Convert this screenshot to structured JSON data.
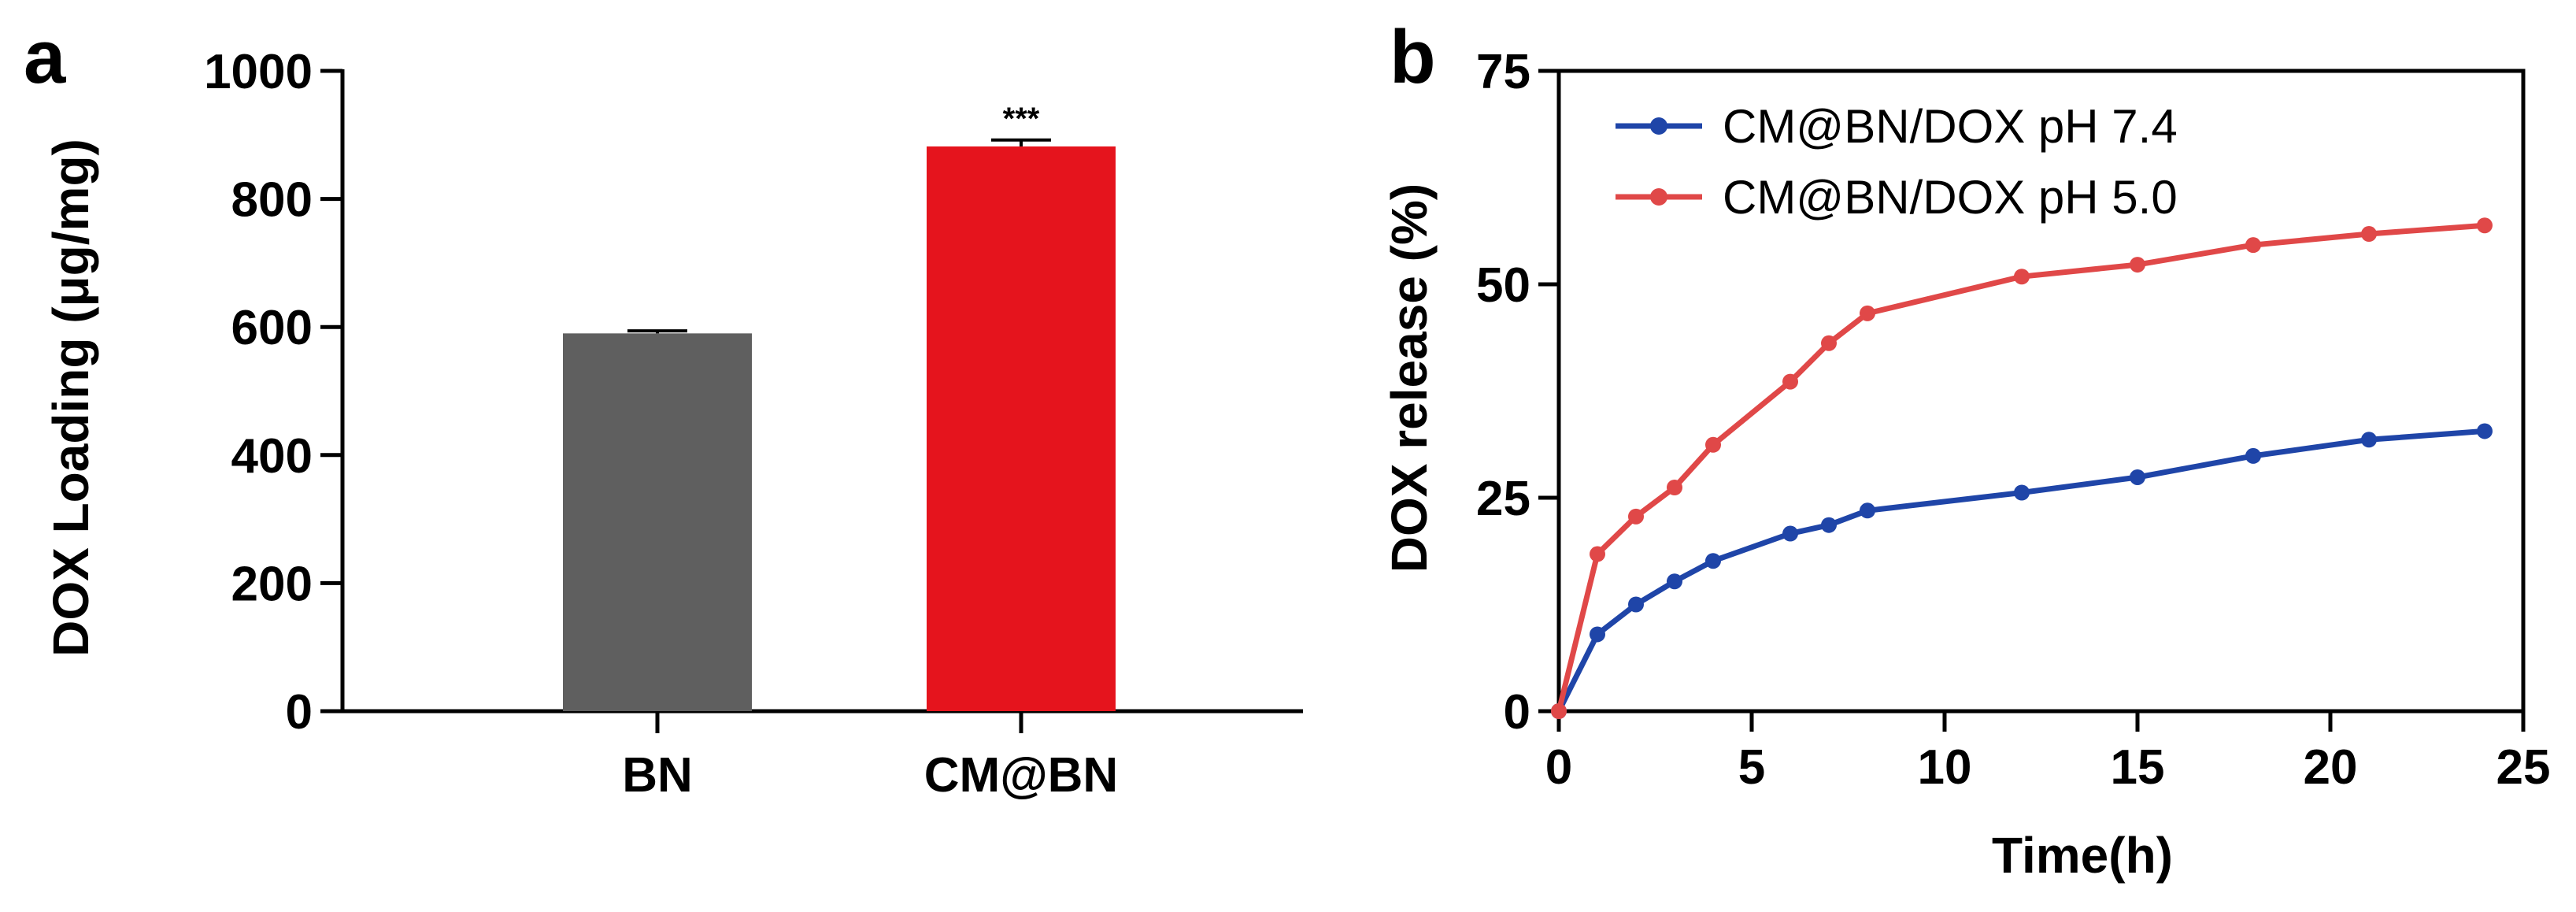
{
  "chart_data": [
    {
      "panel": "a",
      "type": "bar",
      "ylabel": "DOX Loading (μg/mg)",
      "xlabel": "",
      "categories": [
        "BN",
        "CM@BN"
      ],
      "values": [
        590,
        882
      ],
      "errors": [
        4,
        10
      ],
      "colors": [
        "#5f5f5f",
        "#e5141d"
      ],
      "annotations": [
        {
          "category": "CM@BN",
          "text": "***"
        }
      ],
      "ylim": [
        0,
        1000
      ],
      "yticks": [
        0,
        200,
        400,
        600,
        800,
        1000
      ],
      "grid": false
    },
    {
      "panel": "b",
      "type": "line",
      "xlabel": "Time(h)",
      "ylabel": "DOX release (%)",
      "xlim": [
        0,
        25
      ],
      "ylim": [
        0,
        75
      ],
      "xticks": [
        0,
        5,
        10,
        15,
        20,
        25
      ],
      "yticks": [
        0,
        25,
        50,
        75
      ],
      "grid": false,
      "legend_position": "top-left",
      "series": [
        {
          "name": "CM@BN/DOX pH 7.4",
          "color": "#1f45a8",
          "x": [
            0,
            1,
            2,
            3,
            4,
            6,
            7,
            8,
            12,
            15,
            18,
            21,
            24
          ],
          "y": [
            0,
            9,
            12.5,
            15.2,
            17.6,
            20.8,
            21.8,
            23.5,
            25.6,
            27.4,
            29.9,
            31.8,
            32.8
          ]
        },
        {
          "name": "CM@BN/DOX pH 5.0",
          "color": "#e04848",
          "x": [
            0,
            1,
            2,
            3,
            4,
            6,
            7,
            8,
            12,
            15,
            18,
            21,
            24
          ],
          "y": [
            0,
            18.4,
            22.8,
            26.2,
            31.2,
            38.6,
            43.1,
            46.6,
            50.9,
            52.3,
            54.6,
            55.9,
            56.9
          ]
        }
      ]
    }
  ]
}
